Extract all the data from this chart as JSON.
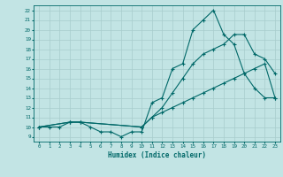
{
  "xlabel": "Humidex (Indice chaleur)",
  "bg_color": "#c2e4e4",
  "grid_color": "#a8cccc",
  "line_color": "#006868",
  "xlim": [
    -0.5,
    23.5
  ],
  "ylim": [
    8.5,
    22.5
  ],
  "xticks": [
    0,
    1,
    2,
    3,
    4,
    5,
    6,
    7,
    8,
    9,
    10,
    11,
    12,
    13,
    14,
    15,
    16,
    17,
    18,
    19,
    20,
    21,
    22,
    23
  ],
  "yticks": [
    9,
    10,
    11,
    12,
    13,
    14,
    15,
    16,
    17,
    18,
    19,
    20,
    21,
    22
  ],
  "line1_x": [
    0,
    1,
    2,
    3,
    4,
    5,
    6,
    7,
    8,
    9,
    10,
    11,
    12,
    13,
    14,
    15,
    16,
    17,
    18,
    19,
    20,
    21,
    22,
    23
  ],
  "line1_y": [
    10,
    10,
    10,
    10.5,
    10.5,
    10,
    9.5,
    9.5,
    9,
    9.5,
    9.5,
    12.5,
    13,
    16,
    16.5,
    20,
    21,
    22,
    19.5,
    18.5,
    15.5,
    14,
    13,
    13
  ],
  "line2_x": [
    0,
    3,
    4,
    10,
    11,
    12,
    13,
    14,
    15,
    16,
    17,
    18,
    19,
    20,
    21,
    22,
    23
  ],
  "line2_y": [
    10,
    10.5,
    10.5,
    10,
    11,
    12,
    13.5,
    15,
    16.5,
    17.5,
    18,
    18.5,
    19.5,
    19.5,
    17.5,
    17,
    15.5
  ],
  "line3_x": [
    0,
    3,
    4,
    10,
    11,
    12,
    13,
    14,
    15,
    16,
    17,
    18,
    19,
    20,
    21,
    22,
    23
  ],
  "line3_y": [
    10,
    10.5,
    10.5,
    10,
    11,
    11.5,
    12,
    12.5,
    13,
    13.5,
    14,
    14.5,
    15,
    15.5,
    16,
    16.5,
    13
  ]
}
